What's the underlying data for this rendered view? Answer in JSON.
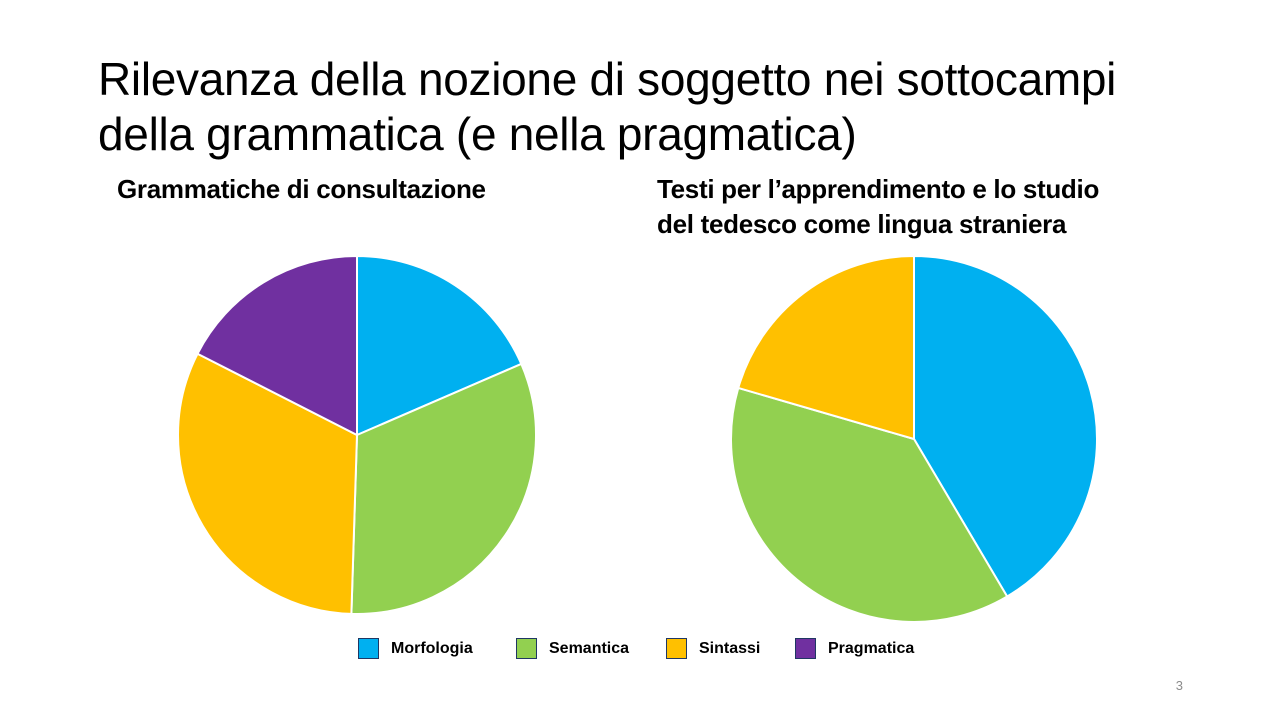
{
  "slide": {
    "title_line1": "Rilevanza della nozione di soggetto nei sottocampi",
    "title_line2": "della grammatica (e nella pragmatica)",
    "page_number": "3"
  },
  "colors": {
    "Morfologia": "#00b0f0",
    "Semantica": "#92d050",
    "Sintassi": "#ffc000",
    "Pragmatica": "#7030a0",
    "slice_border": "#ffffff"
  },
  "legend": [
    {
      "label": "Morfologia",
      "color": "#00b0f0"
    },
    {
      "label": "Semantica",
      "color": "#92d050"
    },
    {
      "label": "Sintassi",
      "color": "#ffc000"
    },
    {
      "label": "Pragmatica",
      "color": "#7030a0"
    }
  ],
  "chart_data": [
    {
      "type": "pie",
      "title": "Grammatiche di consultazione",
      "title_line1": "Grammatiche di consultazione",
      "title_line2": "",
      "start": "top",
      "direction": "clockwise",
      "categories": [
        "Morfologia",
        "Semantica",
        "Sintassi",
        "Pragmatica"
      ],
      "values": [
        18.5,
        32,
        32,
        17.5
      ],
      "unit": "%"
    },
    {
      "type": "pie",
      "title": "Testi per l’apprendimento e lo studio del tedesco come lingua straniera",
      "title_line1": "Testi per l’apprendimento e lo studio",
      "title_line2": "del tedesco come lingua straniera",
      "start": "top",
      "direction": "clockwise",
      "categories": [
        "Morfologia",
        "Semantica",
        "Sintassi"
      ],
      "values": [
        41.5,
        38,
        20.5
      ],
      "unit": "%"
    }
  ]
}
